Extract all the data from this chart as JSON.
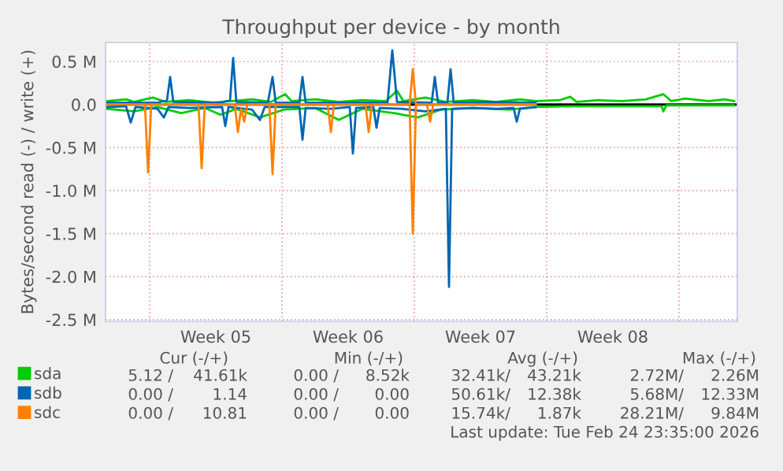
{
  "chart_data": {
    "type": "line",
    "title": "Throughput per device - by month",
    "ylabel": "Bytes/second read (-) / write (+)",
    "xlim": [
      "2026-01-23T16:00",
      "2026-02-26T02:00"
    ],
    "ylim": [
      -2.52,
      0.72
    ],
    "xticks": [
      {
        "value": "2026-01-26T00:00",
        "label": null
      },
      {
        "value": "2026-02-02T00:00",
        "label": null
      },
      {
        "value": "2026-02-09T00:00",
        "label": null
      },
      {
        "value": "2026-02-16T00:00",
        "label": null
      },
      {
        "value": "2026-02-23T00:00",
        "label": null
      },
      {
        "value": "2026-01-29T12:00",
        "label": "Week 05"
      },
      {
        "value": "2026-02-05T12:00",
        "label": "Week 06"
      },
      {
        "value": "2026-02-12T12:00",
        "label": "Week 07"
      },
      {
        "value": "2026-02-19T12:00",
        "label": "Week 08"
      }
    ],
    "yticks": [
      {
        "value": 0.5,
        "label": "0.5 M"
      },
      {
        "value": 0,
        "label": "0.0"
      },
      {
        "value": -0.5,
        "label": "-0.5 M"
      },
      {
        "value": -1.0,
        "label": "-1.0 M"
      },
      {
        "value": -1.5,
        "label": "-1.5 M"
      },
      {
        "value": -2.0,
        "label": "-2.0 M"
      },
      {
        "value": -2.5,
        "label": "-2.5 M"
      }
    ],
    "grid": true,
    "legend": "bottom left",
    "ref_lines": [
      {
        "axis": "y",
        "value": 0,
        "label": null,
        "color": "#000000"
      }
    ],
    "series": [
      {
        "name": "sda",
        "color": "#00cc00",
        "x": [
          "2026-01-23T18:00",
          "2026-01-24T18:00",
          "2026-01-25T04:00",
          "2026-01-26T04:00",
          "2026-01-26T20:00",
          "2026-01-28T02:00",
          "2026-01-29T08:00",
          "2026-01-31T10:00",
          "2026-02-01T10:00",
          "2026-02-02T04:00",
          "2026-02-02T12:00",
          "2026-02-03T18:00",
          "2026-02-05T00:00",
          "2026-02-06T06:00",
          "2026-02-07T12:00",
          "2026-02-08T02:00",
          "2026-02-08T10:00",
          "2026-02-09T14:00",
          "2026-02-10T16:00",
          "2026-02-12T02:00",
          "2026-02-13T08:00",
          "2026-02-14T14:00",
          "2026-02-15T10:00",
          "2026-02-16T16:00",
          "2026-02-17T06:00",
          "2026-02-17T14:00",
          "2026-02-18T18:00",
          "2026-02-20T00:00",
          "2026-02-21T06:00",
          "2026-02-22T04:00",
          "2026-02-22T14:00",
          "2026-02-23T08:00",
          "2026-02-24T14:00",
          "2026-02-25T10:00",
          "2026-02-25T22:00"
        ],
        "values": [
          0.04,
          0.06,
          0.03,
          0.08,
          0.03,
          0.05,
          0.02,
          0.06,
          0.03,
          0.12,
          0.04,
          0.06,
          0.03,
          0.05,
          0.04,
          0.16,
          0.04,
          0.08,
          0.03,
          0.05,
          0.03,
          0.06,
          0.04,
          0.05,
          0.09,
          0.03,
          0.05,
          0.04,
          0.06,
          0.12,
          0.04,
          0.07,
          0.04,
          0.06,
          0.04
        ]
      },
      {
        "color": "#00cc00",
        "x": [
          "2026-01-23T18:00",
          "2026-01-25T04:00",
          "2026-01-26T10:00",
          "2026-01-27T16:00",
          "2026-01-28T22:00",
          "2026-01-29T18:00",
          "2026-01-30T14:00",
          "2026-01-31T20:00",
          "2026-02-02T02:00",
          "2026-02-03T18:00",
          "2026-02-05T00:00",
          "2026-02-06T06:00",
          "2026-02-07T22:00",
          "2026-02-09T04:00",
          "2026-02-10T10:00",
          "2026-02-12T02:00",
          "2026-02-14T00:00",
          "2026-02-15T10:00",
          "2026-02-17T02:00",
          "2026-02-22T02:00",
          "2026-02-22T04:00",
          "2026-02-22T08:00",
          "2026-02-25T22:00"
        ],
        "values": [
          -0.05,
          -0.08,
          -0.03,
          -0.1,
          -0.04,
          -0.12,
          -0.05,
          -0.15,
          -0.06,
          -0.04,
          -0.18,
          -0.05,
          -0.1,
          -0.15,
          -0.06,
          -0.04,
          -0.06,
          -0.03,
          -0.02,
          -0.02,
          -0.08,
          -0.01,
          -0.01
        ]
      },
      {
        "name": "sdb",
        "color": "#0066b3",
        "x": [
          "2026-01-23T18:00",
          "2026-01-26T10:00",
          "2026-01-26T22:00",
          "2026-01-27T02:00",
          "2026-01-27T06:00",
          "2026-01-29T18:00",
          "2026-01-30T06:00",
          "2026-01-30T10:00",
          "2026-01-30T14:00",
          "2026-02-01T06:00",
          "2026-02-01T12:00",
          "2026-02-01T16:00",
          "2026-02-02T22:00",
          "2026-02-03T02:00",
          "2026-02-03T06:00",
          "2026-02-07T14:00",
          "2026-02-07T20:00",
          "2026-02-08T02:00",
          "2026-02-09T22:00",
          "2026-02-10T02:00",
          "2026-02-10T06:00",
          "2026-02-10T18:00",
          "2026-02-10T22:00",
          "2026-02-11T02:00",
          "2026-02-12T22:00",
          "2026-02-15T10:00"
        ],
        "values": [
          0.02,
          0.02,
          0.05,
          0.32,
          0.03,
          0.02,
          0.05,
          0.54,
          0.03,
          0.02,
          0.32,
          0.02,
          0.02,
          0.32,
          0.02,
          0.02,
          0.63,
          0.03,
          0.02,
          0.32,
          0.02,
          0.02,
          0.41,
          0.02,
          0.03,
          0.02
        ]
      },
      {
        "color": "#0066b3",
        "x": [
          "2026-01-23T18:00",
          "2026-01-24T18:00",
          "2026-01-25T00:00",
          "2026-01-25T06:00",
          "2026-01-26T10:00",
          "2026-01-26T18:00",
          "2026-01-27T00:00",
          "2026-01-28T02:00",
          "2026-01-29T20:00",
          "2026-01-30T00:00",
          "2026-01-30T04:00",
          "2026-01-31T10:00",
          "2026-01-31T20:00",
          "2026-02-01T02:00",
          "2026-02-02T22:00",
          "2026-02-03T02:00",
          "2026-02-03T06:00",
          "2026-02-04T14:00",
          "2026-02-05T14:00",
          "2026-02-05T18:00",
          "2026-02-05T22:00",
          "2026-02-06T20:00",
          "2026-02-07T00:00",
          "2026-02-07T04:00",
          "2026-02-08T08:00",
          "2026-02-09T14:00",
          "2026-02-10T16:00",
          "2026-02-10T20:00",
          "2026-02-11T00:00",
          "2026-02-12T02:00",
          "2026-02-13T08:00",
          "2026-02-14T06:00",
          "2026-02-14T10:00",
          "2026-02-14T14:00",
          "2026-02-15T10:00"
        ],
        "values": [
          -0.03,
          -0.02,
          -0.21,
          -0.03,
          -0.05,
          -0.15,
          -0.03,
          -0.04,
          -0.03,
          -0.25,
          -0.03,
          -0.06,
          -0.18,
          -0.03,
          -0.03,
          -0.41,
          -0.04,
          -0.05,
          -0.03,
          -0.57,
          -0.04,
          -0.03,
          -0.27,
          -0.04,
          -0.05,
          -0.08,
          -0.05,
          -2.12,
          -0.05,
          -0.04,
          -0.05,
          -0.04,
          -0.2,
          -0.05,
          -0.03
        ]
      },
      {
        "name": "sdc",
        "color": "#ff8000",
        "x": [
          "2026-01-23T18:00",
          "2026-02-08T18:00",
          "2026-02-08T22:00",
          "2026-02-09T02:00",
          "2026-02-15T10:00"
        ],
        "values": [
          0,
          0,
          0.41,
          0,
          0
        ]
      },
      {
        "color": "#ff8000",
        "x": [
          "2026-01-23T18:00",
          "2026-01-25T18:00",
          "2026-01-25T22:00",
          "2026-01-26T02:00",
          "2026-01-28T14:00",
          "2026-01-28T18:00",
          "2026-01-28T22:00",
          "2026-01-30T12:00",
          "2026-01-30T16:00",
          "2026-01-30T20:00",
          "2026-01-31T00:00",
          "2026-01-31T04:00",
          "2026-02-01T08:00",
          "2026-02-01T12:00",
          "2026-02-01T16:00",
          "2026-02-04T10:00",
          "2026-02-04T14:00",
          "2026-02-04T18:00",
          "2026-02-06T10:00",
          "2026-02-06T14:00",
          "2026-02-06T18:00",
          "2026-02-08T18:00",
          "2026-02-08T22:00",
          "2026-02-09T02:00",
          "2026-02-09T16:00",
          "2026-02-09T20:00",
          "2026-02-10T00:00",
          "2026-02-15T10:00"
        ],
        "values": [
          0,
          0,
          -0.79,
          0,
          0,
          -0.74,
          0,
          0,
          -0.32,
          -0.05,
          -0.2,
          0,
          0,
          -0.81,
          0,
          0,
          -0.32,
          0,
          0,
          -0.32,
          0,
          0,
          -1.5,
          0,
          0,
          -0.2,
          0,
          0
        ]
      }
    ],
    "annotations": [
      "Cur (-/+)",
      "Min (-/+)",
      "Avg (-/+)",
      "Max (-/+)",
      "5.12 /",
      "41.61k",
      "0.00 /",
      "8.52k",
      "32.41k/",
      "43.21k",
      "2.72M/",
      "2.26M",
      "0.00 /",
      "1.14",
      "0.00 /",
      "0.00",
      "50.61k/",
      "12.38k",
      "5.68M/",
      "12.33M",
      "0.00 /",
      "10.81",
      "0.00 /",
      "0.00",
      "15.74k/",
      "1.87k",
      "28.21M/",
      "9.84M",
      "Last update: Tue Feb 24 23:35:00 2026"
    ]
  }
}
